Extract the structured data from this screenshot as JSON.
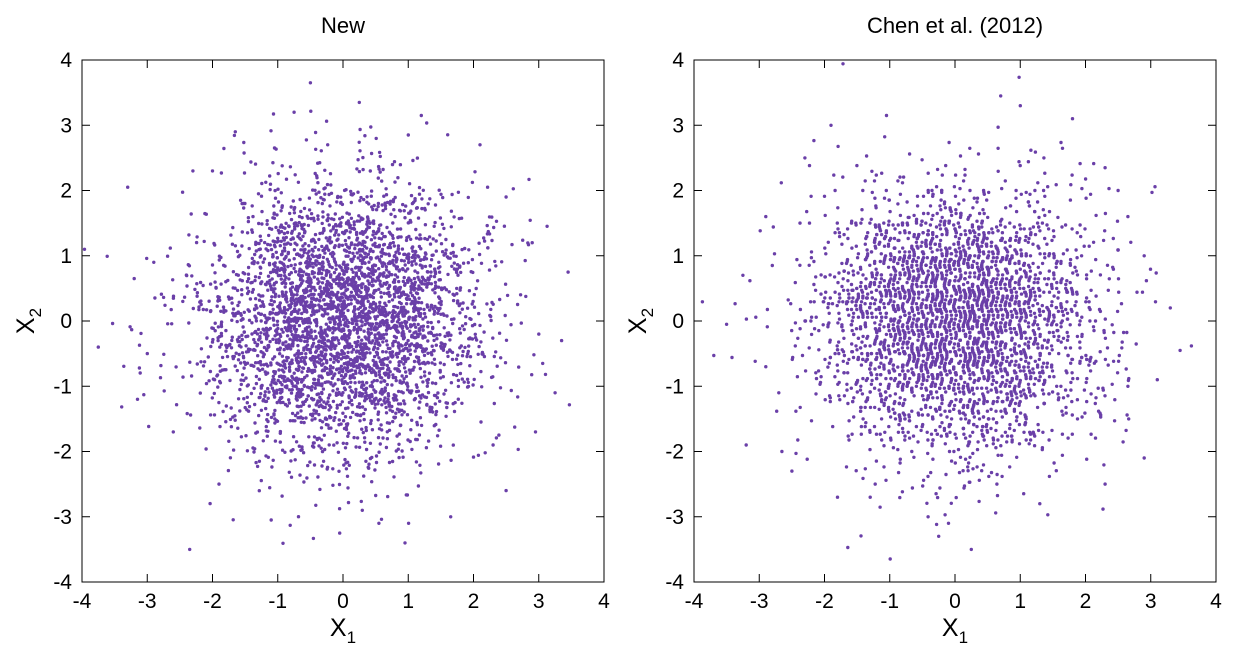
{
  "chart_data": [
    {
      "type": "scatter",
      "title": "New",
      "xlabel": "X",
      "xlabel_sub": "1",
      "ylabel": "X",
      "ylabel_sub": "2",
      "xlim": [
        -4,
        4
      ],
      "ylim": [
        -4,
        4
      ],
      "xticks": [
        "-4",
        "-3",
        "-2",
        "-1",
        "0",
        "1",
        "2",
        "3",
        "4"
      ],
      "yticks": [
        "-4",
        "-3",
        "-2",
        "-1",
        "0",
        "1",
        "2",
        "3",
        "4"
      ],
      "grid": false,
      "legend": "none",
      "point_color": "#6a3fa8",
      "pattern": "radially symmetric point cloud resembling a standard bivariate normal sample, densest at the origin",
      "series": [
        {
          "points": [
            [
              -3.75,
              -0.4
            ],
            [
              -3.3,
              2.05
            ],
            [
              -3.2,
              0.65
            ],
            [
              -3.15,
              -1.2
            ],
            [
              -2.35,
              -3.5
            ],
            [
              -0.5,
              3.65
            ],
            [
              0.25,
              3.35
            ],
            [
              1.2,
              3.15
            ],
            [
              3.45,
              0.75
            ],
            [
              3.35,
              -0.3
            ],
            [
              2.85,
              2.17
            ],
            [
              2.5,
              -2.6
            ],
            [
              1.65,
              -3.0
            ],
            [
              0.95,
              -3.4
            ],
            [
              -0.05,
              -3.25
            ],
            [
              -1.1,
              -3.05
            ],
            [
              -0.75,
              3.2
            ],
            [
              2.1,
              2.7
            ],
            [
              2.95,
              -1.7
            ],
            [
              -2.6,
              -1.7
            ],
            [
              -2.9,
              0.9
            ],
            [
              -1.65,
              2.9
            ],
            [
              1.0,
              2.85
            ],
            [
              2.9,
              1.2
            ],
            [
              3.0,
              -0.2
            ],
            [
              3.25,
              -1.1
            ],
            [
              0.55,
              -3.1
            ],
            [
              -1.9,
              -2.5
            ],
            [
              -2.3,
              2.3
            ],
            [
              -3.0,
              -0.5
            ],
            [
              -2.0,
              2.3
            ],
            [
              2.5,
              1.9
            ],
            [
              2.3,
              -1.9
            ]
          ]
        }
      ]
    },
    {
      "type": "scatter",
      "title": "Chen et al. (2012)",
      "xlabel": "X",
      "xlabel_sub": "1",
      "ylabel": "X",
      "ylabel_sub": "2",
      "xlim": [
        -4,
        4
      ],
      "ylim": [
        -4,
        4
      ],
      "xticks": [
        "-4",
        "-3",
        "-2",
        "-1",
        "0",
        "1",
        "2",
        "3",
        "4"
      ],
      "yticks": [
        "-4",
        "-3",
        "-2",
        "-1",
        "0",
        "1",
        "2",
        "3",
        "4"
      ],
      "grid": false,
      "legend": "none",
      "point_color": "#6a3fa8",
      "pattern": "bivariate normal-like point cloud with visible wavy lattice striping",
      "series": [
        {
          "points": [
            [
              -3.5,
              -0.05
            ],
            [
              -3.25,
              0.7
            ],
            [
              -3.2,
              -1.9
            ],
            [
              -2.9,
              1.6
            ],
            [
              -1.9,
              3.0
            ],
            [
              -1.05,
              3.15
            ],
            [
              0.7,
              3.45
            ],
            [
              1.0,
              3.3
            ],
            [
              1.8,
              3.1
            ],
            [
              3.45,
              -0.45
            ],
            [
              3.3,
              0.2
            ],
            [
              3.1,
              -0.9
            ],
            [
              2.9,
              -2.1
            ],
            [
              2.3,
              -2.5
            ],
            [
              0.25,
              -3.5
            ],
            [
              -0.25,
              -3.3
            ],
            [
              -0.1,
              -3.1
            ],
            [
              -1.8,
              -2.7
            ],
            [
              -2.5,
              -2.3
            ],
            [
              -2.8,
              0.85
            ],
            [
              -2.7,
              -1.1
            ],
            [
              -2.3,
              2.5
            ],
            [
              2.3,
              2.35
            ],
            [
              2.9,
              1.0
            ],
            [
              2.65,
              -1.0
            ],
            [
              1.3,
              -2.8
            ],
            [
              -1.3,
              -2.7
            ],
            [
              2.65,
              1.6
            ],
            [
              -2.9,
              -0.7
            ],
            [
              2.5,
              2.0
            ]
          ]
        }
      ]
    }
  ]
}
